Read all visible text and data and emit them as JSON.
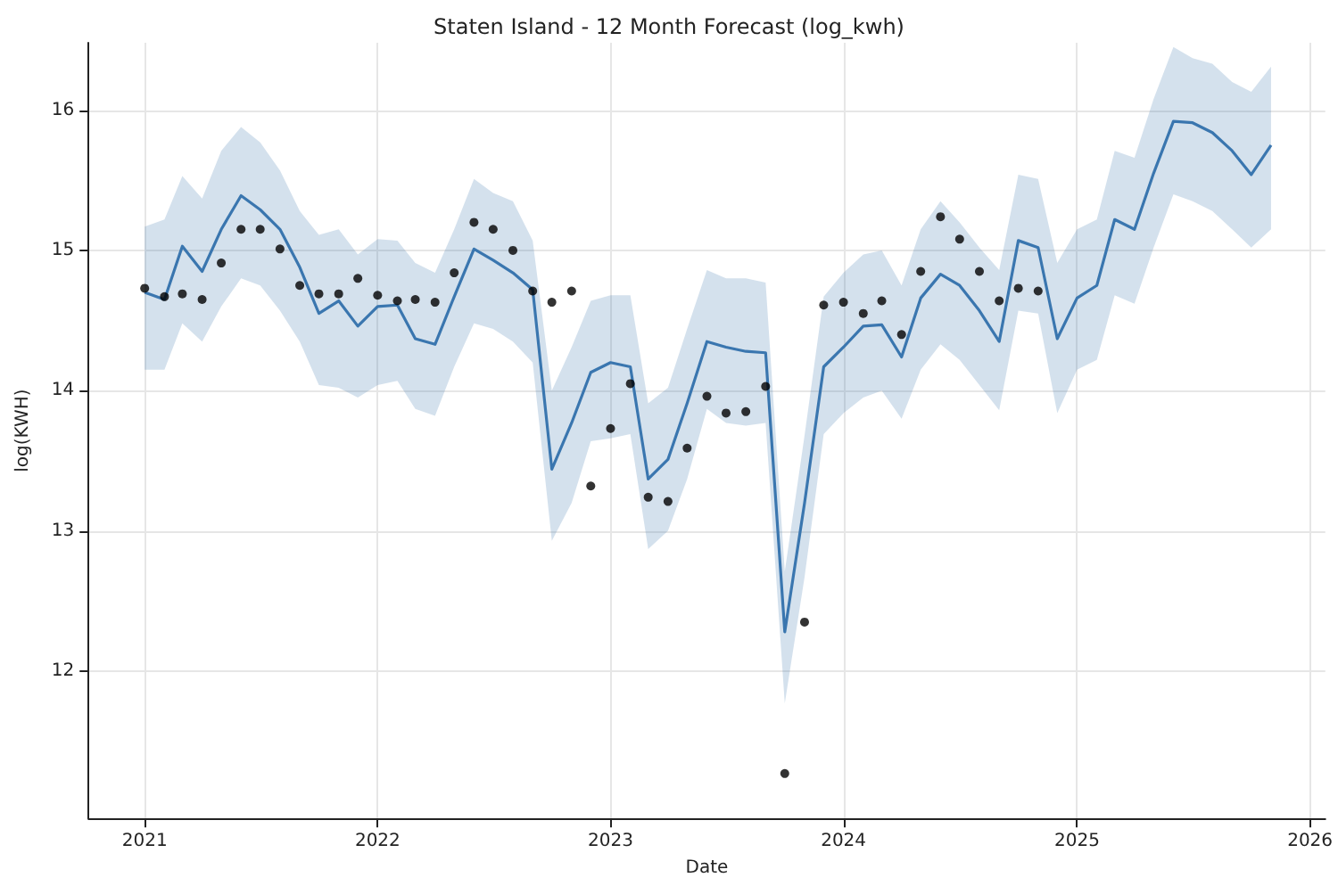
{
  "chart_data": {
    "type": "line",
    "title": "Staten Island - 12 Month Forecast (log_kwh)",
    "xlabel": "Date",
    "ylabel": "log(KWH)",
    "xlim": [
      "2020-10-05",
      "2026-01-25"
    ],
    "xticks": [
      "2021",
      "2022",
      "2023",
      "2024",
      "2025",
      "2026"
    ],
    "ylim": [
      10.95,
      16.48
    ],
    "yticks": [
      12,
      13,
      14,
      15,
      16
    ],
    "grid": true,
    "series": [
      {
        "color": "#3a76af",
        "marker": "none",
        "x": [
          "2021-01",
          "2021-02",
          "2021-03",
          "2021-04",
          "2021-05",
          "2021-06",
          "2021-07",
          "2021-08",
          "2021-09",
          "2021-10",
          "2021-11",
          "2021-12",
          "2022-01",
          "2022-02",
          "2022-03",
          "2022-04",
          "2022-05",
          "2022-06",
          "2022-07",
          "2022-08",
          "2022-09",
          "2022-10",
          "2022-11",
          "2022-12",
          "2023-01",
          "2023-02",
          "2023-03",
          "2023-04",
          "2023-05",
          "2023-06",
          "2023-07",
          "2023-08",
          "2023-09",
          "2023-10",
          "2023-11",
          "2023-12",
          "2024-01",
          "2024-02",
          "2024-03",
          "2024-04",
          "2024-05",
          "2024-06",
          "2024-07",
          "2024-08",
          "2024-09",
          "2024-10",
          "2024-11",
          "2024-12",
          "2025-01",
          "2025-02",
          "2025-03",
          "2025-04",
          "2025-05",
          "2025-06",
          "2025-07",
          "2025-08",
          "2025-09",
          "2025-10",
          "2025-11"
        ],
        "values": [
          14.7,
          14.65,
          15.03,
          14.85,
          15.15,
          15.39,
          15.29,
          15.15,
          14.88,
          14.55,
          14.64,
          14.46,
          14.6,
          14.61,
          14.37,
          14.33,
          14.67,
          15.01,
          14.93,
          14.84,
          14.72,
          13.44,
          13.77,
          14.13,
          14.2,
          14.17,
          13.37,
          13.51,
          13.91,
          14.35,
          14.31,
          14.28,
          14.27,
          12.28,
          13.2,
          14.17,
          14.31,
          14.46,
          14.47,
          14.24,
          14.66,
          14.83,
          14.75,
          14.57,
          14.35,
          15.07,
          15.02,
          14.37,
          14.66,
          14.75,
          15.22,
          15.15,
          15.55,
          15.92,
          15.91,
          15.84,
          15.71,
          15.54,
          15.75
        ],
        "lower": [
          14.15,
          14.15,
          14.48,
          14.35,
          14.6,
          14.8,
          14.75,
          14.57,
          14.35,
          14.04,
          14.02,
          13.95,
          14.04,
          14.07,
          13.87,
          13.82,
          14.17,
          14.48,
          14.44,
          14.35,
          14.2,
          12.93,
          13.2,
          13.64,
          13.66,
          13.69,
          12.87,
          13.0,
          13.37,
          13.87,
          13.77,
          13.75,
          13.77,
          11.77,
          12.67,
          13.69,
          13.84,
          13.95,
          14.0,
          13.8,
          14.15,
          14.33,
          14.22,
          14.04,
          13.86,
          14.57,
          14.55,
          13.84,
          14.15,
          14.22,
          14.68,
          14.62,
          15.02,
          15.4,
          15.35,
          15.28,
          15.15,
          15.02,
          15.15
        ],
        "upper": [
          15.17,
          15.22,
          15.53,
          15.37,
          15.71,
          15.88,
          15.77,
          15.57,
          15.28,
          15.11,
          15.15,
          14.97,
          15.08,
          15.07,
          14.91,
          14.84,
          15.15,
          15.51,
          15.41,
          15.35,
          15.07,
          14.0,
          14.31,
          14.64,
          14.68,
          14.68,
          13.91,
          14.02,
          14.44,
          14.86,
          14.8,
          14.8,
          14.77,
          12.71,
          13.68,
          14.67,
          14.84,
          14.97,
          15.0,
          14.75,
          15.15,
          15.35,
          15.2,
          15.02,
          14.86,
          15.54,
          15.51,
          14.91,
          15.15,
          15.22,
          15.71,
          15.66,
          16.08,
          16.45,
          16.37,
          16.33,
          16.2,
          16.13,
          16.31
        ]
      },
      {
        "type": "scatter",
        "color": "#000000",
        "marker": "circle",
        "x": [
          "2021-01",
          "2021-02",
          "2021-03",
          "2021-04",
          "2021-05",
          "2021-06",
          "2021-07",
          "2021-08",
          "2021-09",
          "2021-10",
          "2021-11",
          "2021-12",
          "2022-01",
          "2022-02",
          "2022-03",
          "2022-04",
          "2022-05",
          "2022-06",
          "2022-07",
          "2022-08",
          "2022-09",
          "2022-10",
          "2022-11",
          "2022-12",
          "2023-01",
          "2023-02",
          "2023-03",
          "2023-04",
          "2023-05",
          "2023-06",
          "2023-07",
          "2023-08",
          "2023-09",
          "2023-10",
          "2023-11",
          "2023-12",
          "2024-01",
          "2024-02",
          "2024-03",
          "2024-04",
          "2024-05",
          "2024-06",
          "2024-07",
          "2024-08",
          "2024-09",
          "2024-10",
          "2024-11"
        ],
        "values": [
          14.73,
          14.67,
          14.69,
          14.65,
          14.91,
          15.15,
          15.15,
          15.01,
          14.75,
          14.69,
          14.69,
          14.8,
          14.68,
          14.64,
          14.65,
          14.63,
          14.84,
          15.2,
          15.15,
          15.0,
          14.71,
          14.63,
          14.71,
          13.32,
          13.73,
          14.05,
          13.24,
          13.21,
          13.59,
          13.96,
          13.84,
          13.85,
          14.03,
          11.27,
          12.35,
          14.61,
          14.63,
          14.55,
          14.64,
          14.4,
          14.85,
          15.24,
          15.08,
          14.85,
          14.64,
          14.73,
          14.71
        ]
      }
    ]
  }
}
